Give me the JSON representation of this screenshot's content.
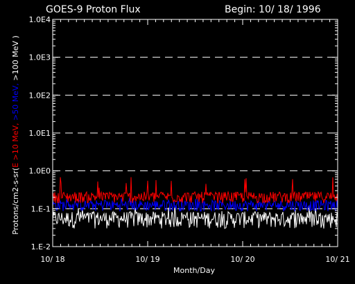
{
  "chart_data": {
    "type": "line",
    "title": "GOES-9 Proton Flux",
    "begin_label": "Begin: 10/ 18/ 1996",
    "xlabel": "Month/Day",
    "ylabel_parts": [
      {
        "text": "Protons/cm2-s-sr(",
        "color": "#ffffff"
      },
      {
        "text": "E >10 MeV,",
        "color": "#ff0000"
      },
      {
        "text": " >50 MeV,",
        "color": "#0000ff"
      },
      {
        "text": " >100 MeV )",
        "color": "#ffffff"
      }
    ],
    "x_days": [
      0,
      3
    ],
    "x_ticks": [
      {
        "day": 0,
        "label": "10/ 18"
      },
      {
        "day": 1,
        "label": "10/ 19"
      },
      {
        "day": 2,
        "label": "10/ 20"
      },
      {
        "day": 3,
        "label": "10/ 21"
      }
    ],
    "y_scale": "log",
    "ylim": [
      0.01,
      10000
    ],
    "y_ticks": [
      {
        "value": 0.01,
        "label": "1.E-2"
      },
      {
        "value": 0.1,
        "label": "1.E-1"
      },
      {
        "value": 1,
        "label": "1.0E0"
      },
      {
        "value": 10,
        "label": "1.0E1"
      },
      {
        "value": 100,
        "label": "1.0E2"
      },
      {
        "value": 1000,
        "label": "1.0E3"
      },
      {
        "value": 10000,
        "label": "1.0E4"
      }
    ],
    "dashed_gridlines_at": [
      0.1,
      1,
      10,
      100,
      1000
    ],
    "series": [
      {
        "name": "E >10 MeV",
        "color": "#ff0000",
        "base": 0.2,
        "min": 0.14,
        "max": 0.75
      },
      {
        "name": ">50 MeV",
        "color": "#0000ff",
        "base": 0.12,
        "min": 0.085,
        "max": 0.2
      },
      {
        "name": ">100 MeV",
        "color": "#ffffff",
        "base": 0.06,
        "min": 0.03,
        "max": 0.13
      }
    ]
  }
}
